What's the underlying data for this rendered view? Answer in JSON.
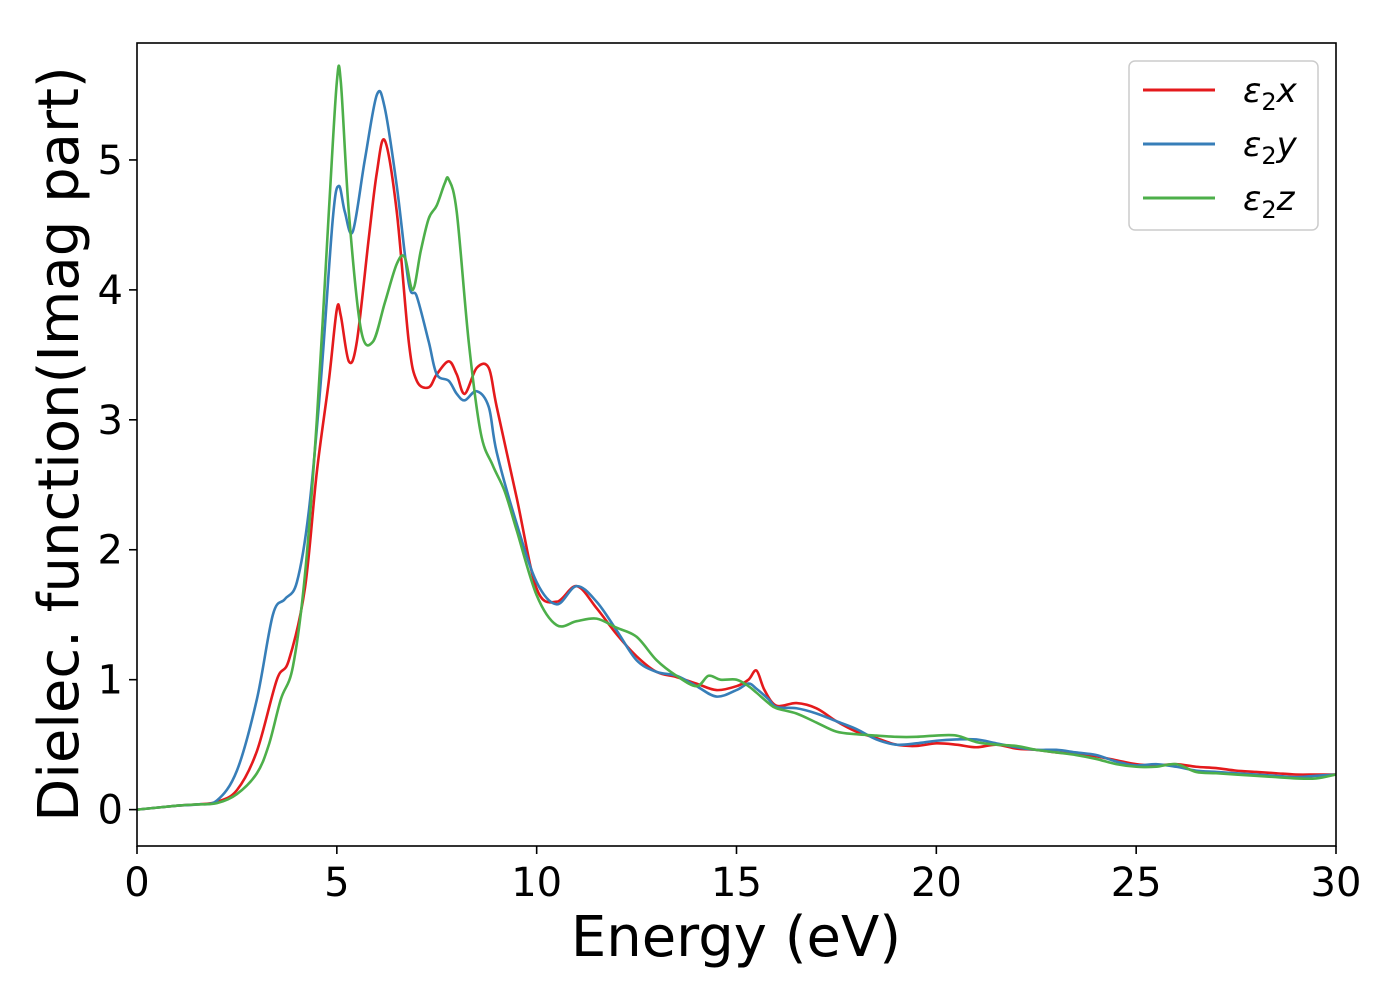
{
  "chart_data": {
    "type": "line",
    "title": "",
    "xlabel": "Energy (eV)",
    "ylabel": "Dielec. function(Imag part)",
    "xlim": [
      0,
      30
    ],
    "ylim": [
      -0.28,
      5.9
    ],
    "xticks": [
      0,
      5,
      10,
      15,
      20,
      25,
      30
    ],
    "yticks": [
      0,
      1,
      2,
      3,
      4,
      5
    ],
    "grid": false,
    "legend_position": "top-right",
    "series": [
      {
        "name": "ε₂x",
        "legend_base": "ε",
        "legend_sub": "2",
        "legend_axis": "x",
        "color": "#e41a1c",
        "x": [
          0,
          1,
          1.5,
          2,
          2.5,
          3,
          3.5,
          3.8,
          4.2,
          4.5,
          4.8,
          5.0,
          5.1,
          5.3,
          5.5,
          5.8,
          6.0,
          6.2,
          6.5,
          6.8,
          7.0,
          7.3,
          7.5,
          7.8,
          8.0,
          8.2,
          8.5,
          8.8,
          9.0,
          9.5,
          10.0,
          10.5,
          11.0,
          11.5,
          12.0,
          12.5,
          13.0,
          13.5,
          14.0,
          14.5,
          15.0,
          15.3,
          15.5,
          15.7,
          16.0,
          16.5,
          17.0,
          17.5,
          18.0,
          18.5,
          19.0,
          19.5,
          20.0,
          20.5,
          21.0,
          21.5,
          22.0,
          22.5,
          23.0,
          23.5,
          24.0,
          24.5,
          25.0,
          25.5,
          26.0,
          26.5,
          27.0,
          27.5,
          28.0,
          28.5,
          29.0,
          29.5,
          30.0
        ],
        "values": [
          0,
          0.03,
          0.04,
          0.06,
          0.15,
          0.45,
          1.0,
          1.15,
          1.7,
          2.6,
          3.3,
          3.85,
          3.8,
          3.45,
          3.6,
          4.4,
          4.9,
          5.15,
          4.6,
          3.6,
          3.3,
          3.25,
          3.35,
          3.45,
          3.35,
          3.2,
          3.4,
          3.4,
          3.1,
          2.4,
          1.7,
          1.6,
          1.72,
          1.55,
          1.35,
          1.18,
          1.06,
          1.02,
          0.97,
          0.92,
          0.95,
          1.0,
          1.07,
          0.92,
          0.8,
          0.82,
          0.78,
          0.68,
          0.6,
          0.55,
          0.5,
          0.49,
          0.51,
          0.5,
          0.48,
          0.5,
          0.47,
          0.46,
          0.44,
          0.43,
          0.41,
          0.38,
          0.35,
          0.34,
          0.35,
          0.33,
          0.32,
          0.3,
          0.29,
          0.28,
          0.27,
          0.27,
          0.27
        ]
      },
      {
        "name": "ε₂y",
        "legend_base": "ε",
        "legend_sub": "2",
        "legend_axis": "y",
        "color": "#377eb8",
        "x": [
          0,
          1,
          1.5,
          2,
          2.5,
          3,
          3.4,
          3.7,
          4.0,
          4.3,
          4.6,
          4.9,
          5.05,
          5.2,
          5.4,
          5.7,
          6.0,
          6.2,
          6.5,
          6.8,
          7.0,
          7.3,
          7.5,
          7.8,
          8.0,
          8.2,
          8.5,
          8.8,
          9.0,
          9.5,
          10.0,
          10.5,
          11.0,
          11.5,
          12.0,
          12.5,
          13.0,
          13.5,
          14.0,
          14.5,
          15.0,
          15.3,
          15.5,
          15.8,
          16.0,
          16.5,
          17.0,
          17.5,
          18.0,
          18.5,
          19.0,
          19.5,
          20.0,
          20.5,
          21.0,
          21.5,
          22.0,
          22.5,
          23.0,
          23.5,
          24.0,
          24.5,
          25.0,
          25.5,
          26.0,
          26.5,
          27.0,
          27.5,
          28.0,
          28.5,
          29.0,
          29.5,
          30.0
        ],
        "values": [
          0,
          0.03,
          0.04,
          0.07,
          0.3,
          0.85,
          1.5,
          1.62,
          1.75,
          2.3,
          3.3,
          4.55,
          4.8,
          4.6,
          4.45,
          5.0,
          5.5,
          5.4,
          4.8,
          4.05,
          3.95,
          3.6,
          3.35,
          3.3,
          3.2,
          3.15,
          3.22,
          3.1,
          2.75,
          2.2,
          1.75,
          1.58,
          1.72,
          1.6,
          1.38,
          1.15,
          1.06,
          1.03,
          0.95,
          0.87,
          0.92,
          0.97,
          0.93,
          0.85,
          0.79,
          0.78,
          0.74,
          0.68,
          0.62,
          0.54,
          0.5,
          0.51,
          0.53,
          0.54,
          0.54,
          0.51,
          0.48,
          0.46,
          0.46,
          0.44,
          0.42,
          0.37,
          0.34,
          0.35,
          0.33,
          0.3,
          0.29,
          0.28,
          0.27,
          0.26,
          0.25,
          0.26,
          0.27
        ]
      },
      {
        "name": "ε₂z",
        "legend_base": "ε",
        "legend_sub": "2",
        "legend_axis": "z",
        "color": "#4daf4a",
        "x": [
          0,
          1,
          1.5,
          2,
          2.5,
          3,
          3.3,
          3.6,
          3.9,
          4.2,
          4.5,
          4.8,
          5.0,
          5.1,
          5.3,
          5.6,
          5.9,
          6.2,
          6.5,
          6.7,
          6.9,
          7.1,
          7.3,
          7.5,
          7.7,
          7.8,
          8.0,
          8.3,
          8.6,
          8.9,
          9.2,
          9.5,
          10.0,
          10.5,
          11.0,
          11.5,
          12.0,
          12.5,
          13.0,
          13.5,
          14.0,
          14.3,
          14.6,
          15.0,
          15.3,
          15.5,
          15.8,
          16.0,
          16.5,
          17.0,
          17.5,
          18.0,
          18.5,
          19.0,
          19.5,
          20.0,
          20.5,
          21.0,
          21.5,
          22.0,
          22.5,
          23.0,
          23.5,
          24.0,
          24.5,
          25.0,
          25.5,
          26.0,
          26.5,
          27.0,
          27.5,
          28.0,
          28.5,
          29.0,
          29.5,
          30.0
        ],
        "values": [
          0,
          0.03,
          0.04,
          0.05,
          0.12,
          0.28,
          0.5,
          0.85,
          1.1,
          1.8,
          3.0,
          4.6,
          5.6,
          5.6,
          4.6,
          3.7,
          3.6,
          3.9,
          4.2,
          4.25,
          4.0,
          4.3,
          4.55,
          4.65,
          4.82,
          4.85,
          4.6,
          3.6,
          2.9,
          2.65,
          2.45,
          2.15,
          1.65,
          1.42,
          1.45,
          1.47,
          1.4,
          1.33,
          1.15,
          1.03,
          0.95,
          1.03,
          1.0,
          1.0,
          0.95,
          0.9,
          0.82,
          0.78,
          0.74,
          0.67,
          0.6,
          0.58,
          0.57,
          0.56,
          0.56,
          0.57,
          0.57,
          0.52,
          0.5,
          0.49,
          0.46,
          0.44,
          0.42,
          0.39,
          0.35,
          0.33,
          0.33,
          0.35,
          0.29,
          0.28,
          0.27,
          0.26,
          0.25,
          0.24,
          0.24,
          0.27
        ]
      }
    ]
  }
}
